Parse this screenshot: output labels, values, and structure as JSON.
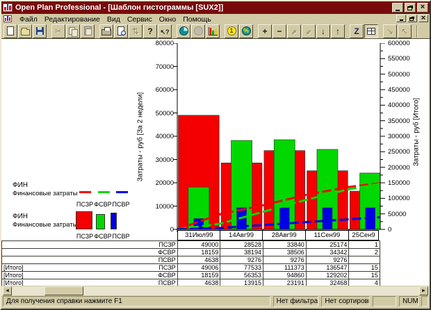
{
  "window": {
    "title": "Open Plan Professional - [Шаблон гистограммы [SUX2]]"
  },
  "menu": {
    "items": [
      "Файл",
      "Редактирование",
      "Вид",
      "Сервис",
      "Окно",
      "Помощь"
    ]
  },
  "toolbar": {
    "groups": [
      {
        "buttons": [
          {
            "icon": "new-document-icon",
            "enabled": true
          },
          {
            "icon": "open-folder-icon",
            "enabled": true
          },
          {
            "icon": "save-icon",
            "enabled": true
          }
        ]
      },
      {
        "buttons": [
          {
            "icon": "cut-icon",
            "enabled": false
          },
          {
            "icon": "copy-icon",
            "enabled": false
          },
          {
            "icon": "paste-icon",
            "enabled": false
          }
        ]
      },
      {
        "buttons": [
          {
            "icon": "print-icon",
            "enabled": true
          },
          {
            "icon": "print-preview-icon",
            "enabled": true
          },
          {
            "icon": "sort-arrows-icon",
            "enabled": false
          },
          {
            "icon": "help-icon",
            "enabled": true
          },
          {
            "icon": "context-help-icon",
            "enabled": true
          }
        ]
      },
      {
        "buttons": [
          {
            "icon": "time-clock-icon",
            "enabled": true
          },
          {
            "icon": "calendar-icon",
            "enabled": false
          },
          {
            "icon": "histogram-icon",
            "enabled": true
          }
        ]
      },
      {
        "buttons": [
          {
            "icon": "currency-coin-icon",
            "enabled": true
          },
          {
            "icon": "percent-icon",
            "enabled": true
          }
        ]
      },
      {
        "buttons": [
          {
            "icon": "add-icon",
            "enabled": true
          },
          {
            "icon": "remove-icon",
            "enabled": true
          },
          {
            "icon": "link-out-icon",
            "enabled": false
          },
          {
            "icon": "link-in-icon",
            "enabled": false
          },
          {
            "icon": "move-down-icon",
            "enabled": true
          },
          {
            "icon": "move-up-icon",
            "enabled": true
          }
        ]
      },
      {
        "buttons": [
          {
            "icon": "zoom-z-icon",
            "enabled": true
          },
          {
            "icon": "table-view-icon",
            "enabled": true,
            "pressed": true
          }
        ]
      },
      {
        "buttons": [
          {
            "icon": "expand-icon",
            "enabled": false
          },
          {
            "icon": "collapse-icon",
            "enabled": false
          }
        ]
      }
    ]
  },
  "chart_data": {
    "type": "bar",
    "subtype": "bar+line combo, dual axis",
    "categories": [
      "31Июл99",
      "14Авг99",
      "28Авг99",
      "11Сен99",
      "25Сен9"
    ],
    "left_axis": {
      "label": "Затраты - руб [За 2 недели]",
      "min": 0,
      "max": 80000,
      "step": 10000
    },
    "right_axis": {
      "label": "Затраты - руб [Итого]",
      "min": 0,
      "max": 600000,
      "step": 50000
    },
    "bar_series": [
      {
        "name": "ПСЗР",
        "color": "#f40000",
        "axis": "left",
        "values": [
          49000,
          28528,
          33840,
          25174,
          16400
        ]
      },
      {
        "name": "ФСВР",
        "color": "#00d800",
        "axis": "left",
        "values": [
          18159,
          38194,
          38506,
          34342,
          24200
        ]
      },
      {
        "name": "ПСВР",
        "color": "#0000e4",
        "axis": "left",
        "values": [
          4638,
          9276,
          9276,
          9276,
          9276
        ]
      }
    ],
    "line_series": [
      {
        "name": "ПСЗР",
        "color": "#f40000",
        "axis": "right",
        "values": [
          49006,
          77533,
          111373,
          136547,
          152947
        ]
      },
      {
        "name": "ФСВР",
        "color": "#00d800",
        "axis": "right",
        "values": [
          18159,
          56353,
          94860,
          129202,
          153402
        ]
      },
      {
        "name": "ПСВР",
        "color": "#0000e4",
        "axis": "right",
        "values": [
          4638,
          13915,
          23191,
          32468,
          41744
        ]
      }
    ],
    "legend_position": "left",
    "grid": false
  },
  "legends": [
    {
      "title": "ФИН",
      "subtitle": "Финансовые затраты",
      "style": "line",
      "items": [
        {
          "label": "ПСЗР",
          "color": "#f40000"
        },
        {
          "label": "ФСВР",
          "color": "#00d800"
        },
        {
          "label": "ПСВР",
          "color": "#0000e4"
        }
      ]
    },
    {
      "title": "ФИН",
      "subtitle": "Финансовые затраты",
      "style": "bar",
      "items": [
        {
          "label": "ПСЗР",
          "color": "#f40000"
        },
        {
          "label": "ФСВР",
          "color": "#00d800"
        },
        {
          "label": "ПСВР",
          "color": "#0000e4"
        }
      ]
    }
  ],
  "table": {
    "rows": [
      {
        "group": "",
        "code": "ПСЗР",
        "values": [
          "49000",
          "28528",
          "33840",
          "25174",
          "1"
        ]
      },
      {
        "group": "",
        "code": "ФСВР",
        "values": [
          "18159",
          "38194",
          "38506",
          "34342",
          "2"
        ]
      },
      {
        "group": "",
        "code": "ПСВР",
        "values": [
          "4638",
          "9276",
          "9276",
          "9276",
          ""
        ]
      },
      {
        "group": "[Итого]",
        "code": "ПСЗР",
        "values": [
          "49006",
          "77533",
          "111373",
          "136547",
          "15"
        ]
      },
      {
        "group": "[Итого]",
        "code": "ФСВР",
        "values": [
          "18159",
          "56353",
          "94860",
          "129202",
          "15"
        ]
      },
      {
        "group": "[Итого]",
        "code": "ПСВР",
        "values": [
          "4638",
          "13915",
          "23191",
          "32468",
          "4"
        ]
      }
    ]
  },
  "status_bar": {
    "help_text": "Для получения справки нажмите F1",
    "filter": "Нет фильтра",
    "sort": "Нет сортировки",
    "num_lock": "NUM"
  }
}
